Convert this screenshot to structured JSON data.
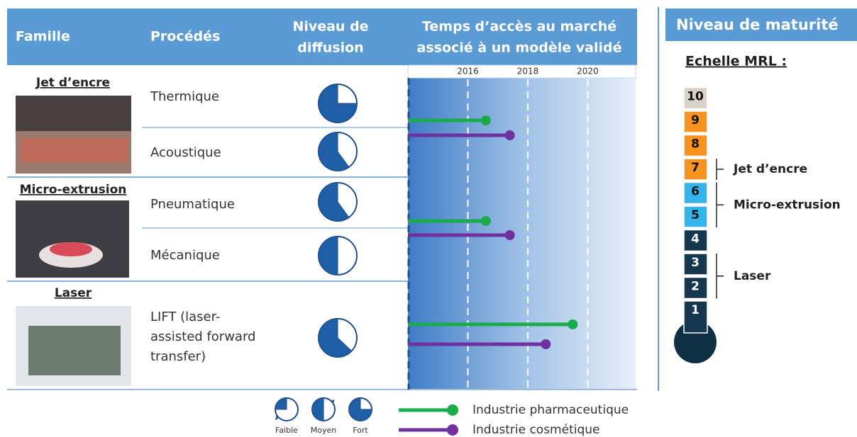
{
  "header": {
    "columns": [
      [
        "Famille"
      ],
      [
        "Procédés"
      ],
      [
        "Niveau de",
        "diffusion"
      ],
      [
        "Temps d’accès au marché",
        "associé à un modèle validé"
      ]
    ]
  },
  "families": [
    {
      "name": "Jet d’encre",
      "processes": [
        {
          "name": [
            "Thermique"
          ],
          "diffusion": 75
        },
        {
          "name": [
            "Acoustique"
          ],
          "diffusion": 60
        }
      ]
    },
    {
      "name": "Micro-extrusion",
      "processes": [
        {
          "name": [
            "Pneumatique"
          ],
          "diffusion": 60
        },
        {
          "name": [
            "Mécanique"
          ],
          "diffusion": 50
        }
      ]
    },
    {
      "name": "Laser",
      "processes": [
        {
          "name": [
            "LIFT (laser-",
            "assisted forward",
            "transfer)"
          ],
          "diffusion": 63
        }
      ]
    }
  ],
  "timeline": {
    "xlim": [
      2014,
      2021.6
    ],
    "xticks": [
      2016,
      2018,
      2020
    ],
    "series": [
      {
        "name": "Industrie pharmaceutique",
        "color": "#1aab4b",
        "values": [
          2016.6,
          2016.6,
          2019.5
        ]
      },
      {
        "name": "Industrie cosmétique",
        "color": "#7030a0",
        "values": [
          2017.4,
          2017.4,
          2018.6
        ]
      }
    ]
  },
  "diffusion_legend": [
    {
      "label": "Faible",
      "value": 25
    },
    {
      "label": "Moyen",
      "value": 50
    },
    {
      "label": "Fort",
      "value": 75
    }
  ],
  "maturity": {
    "title": "Niveau de maturité",
    "scale_label": "Echelle MRL :",
    "levels": [
      {
        "value": 1,
        "color": "#15384f"
      },
      {
        "value": 2,
        "color": "#15384f"
      },
      {
        "value": 3,
        "color": "#15384f"
      },
      {
        "value": 4,
        "color": "#15384f"
      },
      {
        "value": 5,
        "color": "#33b5ec"
      },
      {
        "value": 6,
        "color": "#33b5ec"
      },
      {
        "value": 7,
        "color": "#f7931e"
      },
      {
        "value": 8,
        "color": "#f7931e"
      },
      {
        "value": 9,
        "color": "#f7931e"
      },
      {
        "value": 10,
        "color": "#d9d0c7"
      }
    ],
    "brackets": [
      {
        "label": "Jet d’encre",
        "range": [
          7,
          7
        ]
      },
      {
        "label": "Micro-extrusion",
        "range": [
          5,
          6
        ]
      },
      {
        "label": "Laser",
        "range": [
          2,
          3
        ]
      }
    ]
  }
}
